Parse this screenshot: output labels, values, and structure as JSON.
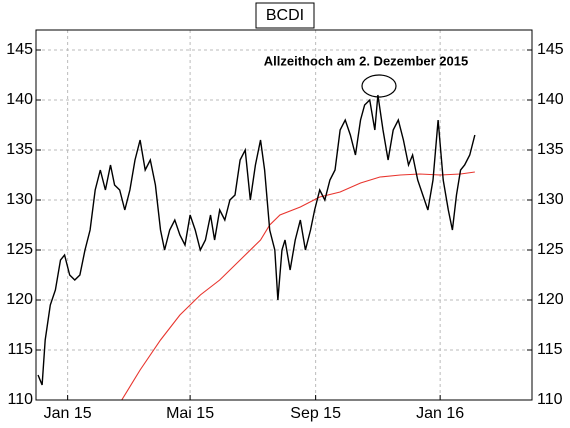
{
  "chart_data": {
    "type": "line",
    "title": "BCDI",
    "annotation": "Allzeithoch am 2. Dezember 2015",
    "xlim": [
      -31,
      455
    ],
    "xticks": [
      {
        "value": 0,
        "label": "Jan 15"
      },
      {
        "value": 120,
        "label": "Mai 15"
      },
      {
        "value": 243,
        "label": "Sep 15"
      },
      {
        "value": 365,
        "label": "Jan 16"
      }
    ],
    "ylim": [
      110,
      147
    ],
    "yticks": [
      110,
      115,
      120,
      125,
      130,
      135,
      140,
      145
    ],
    "grid": true,
    "series": [
      {
        "color": "#000000",
        "x": [
          -29,
          -25,
          -22,
          -17,
          -12,
          -7,
          -3,
          2,
          7,
          12,
          17,
          22,
          27,
          32,
          37,
          42,
          46,
          51,
          56,
          61,
          66,
          71,
          76,
          81,
          86,
          91,
          95,
          100,
          105,
          110,
          115,
          120,
          125,
          130,
          135,
          140,
          144,
          149,
          154,
          159,
          164,
          169,
          174,
          179,
          184,
          189,
          193,
          198,
          203,
          206,
          210,
          213,
          218,
          223,
          228,
          233,
          238,
          242,
          247,
          252,
          257,
          262,
          267,
          272,
          277,
          282,
          287,
          291,
          296,
          301,
          304,
          309,
          314,
          319,
          324,
          329,
          334,
          338,
          343,
          348,
          353,
          358,
          363,
          368,
          373,
          377,
          381,
          385,
          389,
          394,
          399
        ],
        "values": [
          112.5,
          111.5,
          116,
          119.5,
          121,
          124,
          124.5,
          122.5,
          122,
          122.5,
          125,
          127,
          131,
          133,
          131,
          133.5,
          131.5,
          131,
          129,
          131,
          134,
          136,
          133,
          134,
          131.5,
          127,
          125,
          127,
          128,
          126.5,
          125.5,
          128.5,
          127,
          125,
          126,
          128.5,
          126,
          129,
          128,
          130,
          130.5,
          134,
          135,
          130,
          133.5,
          136,
          133,
          127,
          125,
          120,
          125,
          126,
          123,
          126,
          128,
          125,
          127,
          129,
          131,
          130,
          132,
          133,
          137,
          138,
          136.5,
          134.5,
          138,
          139.5,
          140,
          137,
          140.5,
          137,
          134,
          137,
          138,
          136,
          133.5,
          134.5,
          132,
          130.5,
          129,
          132,
          138,
          132,
          129,
          127,
          130.5,
          133,
          133.5,
          134.5,
          136.5
        ]
      },
      {
        "color": "#e8352e",
        "x": [
          53,
          71,
          91,
          110,
          130,
          149,
          169,
          189,
          198,
          208,
          228,
          247,
          267,
          287,
          306,
          326,
          345,
          365,
          385,
          399
        ],
        "values": [
          110,
          113,
          116,
          118.5,
          120.5,
          122,
          124,
          126,
          127.5,
          128.5,
          129.3,
          130.3,
          130.8,
          131.7,
          132.3,
          132.5,
          132.6,
          132.5,
          132.6,
          132.8
        ]
      }
    ]
  }
}
